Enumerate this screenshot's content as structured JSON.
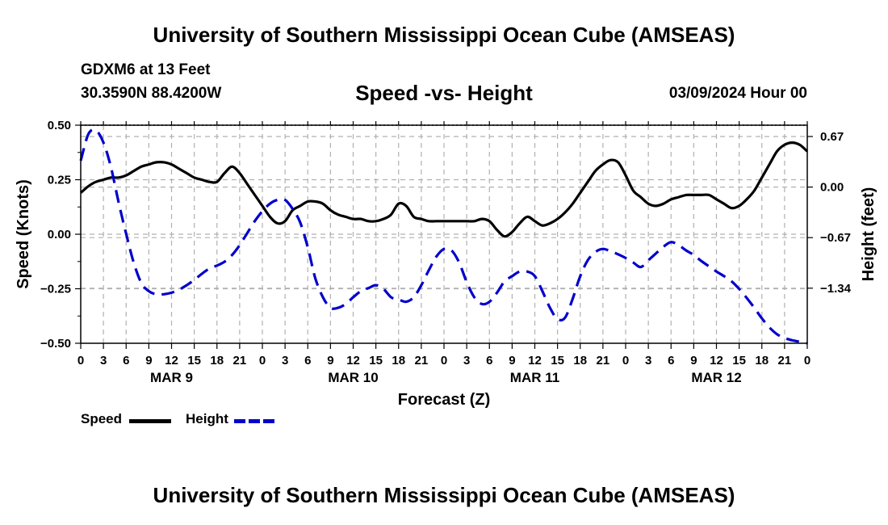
{
  "header": {
    "top_title": "University of Southern Mississippi Ocean Cube (AMSEAS)",
    "station": "GDXM6 at 13 Feet",
    "coords": "30.3590N  88.4200W",
    "subtitle": "Speed -vs- Height",
    "datetime": "03/09/2024 Hour 00",
    "bottom_title": "University of Southern Mississippi Ocean Cube (AMSEAS)"
  },
  "legend": {
    "speed_label": "Speed",
    "height_label": "Height"
  },
  "colors": {
    "speed": "#000000",
    "height": "#0000cc",
    "grid": "#b0b0b0"
  },
  "chart_data": {
    "type": "line",
    "title": "Speed -vs- Height",
    "xlabel": "Forecast (Z)",
    "ylabel": "Speed (Knots)",
    "y2label": "Height (feet)",
    "xlim": [
      0,
      96
    ],
    "ylim": [
      -0.5,
      0.5
    ],
    "y2lim": [
      -2.07,
      0.82
    ],
    "yticks": [
      0.5,
      0.25,
      0.0,
      -0.25,
      -0.5
    ],
    "ytick_labels": [
      "0.50",
      "0.25",
      "0.00",
      "−0.25",
      "−0.50"
    ],
    "y2ticks": [
      0.67,
      0.0,
      -0.67,
      -1.34
    ],
    "y2tick_labels": [
      "0.67",
      "0.00",
      "−0.67",
      "−1.34"
    ],
    "xtick_labels": [
      "0",
      "3",
      "6",
      "9",
      "12",
      "15",
      "18",
      "21",
      "0",
      "3",
      "6",
      "9",
      "12",
      "15",
      "18",
      "21",
      "0",
      "3",
      "6",
      "9",
      "12",
      "15",
      "18",
      "21",
      "0",
      "3",
      "6",
      "9",
      "12",
      "15",
      "18",
      "21",
      "0"
    ],
    "day_labels": [
      {
        "text": "MAR 9",
        "x": 12
      },
      {
        "text": "MAR 10",
        "x": 36
      },
      {
        "text": "MAR 11",
        "x": 60
      },
      {
        "text": "MAR 12",
        "x": 84
      }
    ],
    "series": [
      {
        "name": "Speed",
        "axis": "left",
        "x": [
          0,
          1,
          2,
          3,
          4,
          5,
          6,
          7,
          8,
          9,
          10,
          11,
          12,
          13,
          14,
          15,
          16,
          17,
          18,
          19,
          20,
          21,
          22,
          23,
          24,
          25,
          26,
          27,
          28,
          29,
          30,
          31,
          32,
          33,
          34,
          35,
          36,
          37,
          38,
          39,
          40,
          41,
          42,
          43,
          44,
          45,
          46,
          47,
          48,
          49,
          50,
          51,
          52,
          53,
          54,
          55,
          56,
          57,
          58,
          59,
          60,
          61,
          62,
          63,
          64,
          65,
          66,
          67,
          68,
          69,
          70,
          71,
          72,
          73,
          74,
          75,
          76,
          77,
          78,
          79,
          80,
          81,
          82,
          83,
          84,
          85,
          86,
          87,
          88,
          89,
          90,
          91,
          92,
          93,
          94,
          95,
          96
        ],
        "values": [
          0.19,
          0.22,
          0.24,
          0.25,
          0.26,
          0.26,
          0.27,
          0.29,
          0.31,
          0.32,
          0.33,
          0.33,
          0.32,
          0.3,
          0.28,
          0.26,
          0.25,
          0.24,
          0.24,
          0.28,
          0.31,
          0.28,
          0.23,
          0.18,
          0.13,
          0.08,
          0.05,
          0.06,
          0.11,
          0.13,
          0.15,
          0.15,
          0.14,
          0.11,
          0.09,
          0.08,
          0.07,
          0.07,
          0.06,
          0.06,
          0.07,
          0.09,
          0.14,
          0.13,
          0.08,
          0.07,
          0.06,
          0.06,
          0.06,
          0.06,
          0.06,
          0.06,
          0.06,
          0.07,
          0.06,
          0.02,
          -0.01,
          0.01,
          0.05,
          0.08,
          0.06,
          0.04,
          0.05,
          0.07,
          0.1,
          0.14,
          0.19,
          0.24,
          0.29,
          0.32,
          0.34,
          0.33,
          0.27,
          0.2,
          0.17,
          0.14,
          0.13,
          0.14,
          0.16,
          0.17,
          0.18,
          0.18,
          0.18,
          0.18,
          0.16,
          0.14,
          0.12,
          0.13,
          0.16,
          0.2,
          0.26,
          0.32,
          0.38,
          0.41,
          0.42,
          0.41,
          0.38
        ]
      },
      {
        "name": "Height",
        "axis": "right",
        "x": [
          0,
          1,
          2,
          3,
          4,
          5,
          6,
          7,
          8,
          9,
          10,
          11,
          12,
          13,
          14,
          15,
          16,
          17,
          18,
          19,
          20,
          21,
          22,
          23,
          24,
          25,
          26,
          27,
          28,
          29,
          30,
          31,
          32,
          33,
          34,
          35,
          36,
          37,
          38,
          39,
          40,
          41,
          42,
          43,
          44,
          45,
          46,
          47,
          48,
          49,
          50,
          51,
          52,
          53,
          54,
          55,
          56,
          57,
          58,
          59,
          60,
          61,
          62,
          63,
          64,
          65,
          66,
          67,
          68,
          69,
          70,
          71,
          72,
          73,
          74,
          75,
          76,
          77,
          78,
          79,
          80,
          81,
          82,
          83,
          84,
          85,
          86,
          87,
          88,
          89,
          90,
          91,
          92,
          93,
          94,
          95,
          96
        ],
        "values": [
          0.35,
          0.7,
          0.75,
          0.59,
          0.26,
          -0.2,
          -0.62,
          -1.0,
          -1.27,
          -1.38,
          -1.42,
          -1.42,
          -1.4,
          -1.36,
          -1.3,
          -1.23,
          -1.15,
          -1.08,
          -1.04,
          -0.99,
          -0.9,
          -0.77,
          -0.61,
          -0.45,
          -0.32,
          -0.22,
          -0.17,
          -0.17,
          -0.29,
          -0.47,
          -0.8,
          -1.21,
          -1.46,
          -1.6,
          -1.6,
          -1.55,
          -1.46,
          -1.38,
          -1.34,
          -1.3,
          -1.35,
          -1.46,
          -1.49,
          -1.52,
          -1.46,
          -1.3,
          -1.1,
          -0.92,
          -0.82,
          -0.84,
          -1.0,
          -1.26,
          -1.46,
          -1.55,
          -1.52,
          -1.4,
          -1.25,
          -1.18,
          -1.12,
          -1.12,
          -1.18,
          -1.38,
          -1.6,
          -1.75,
          -1.73,
          -1.48,
          -1.18,
          -0.97,
          -0.86,
          -0.82,
          -0.85,
          -0.89,
          -0.94,
          -1.0,
          -1.06,
          -0.97,
          -0.88,
          -0.79,
          -0.73,
          -0.77,
          -0.84,
          -0.9,
          -0.98,
          -1.05,
          -1.12,
          -1.18,
          -1.25,
          -1.35,
          -1.47,
          -1.6,
          -1.74,
          -1.86,
          -1.95,
          -2.0,
          -2.03,
          -2.05,
          -2.07
        ]
      }
    ]
  }
}
